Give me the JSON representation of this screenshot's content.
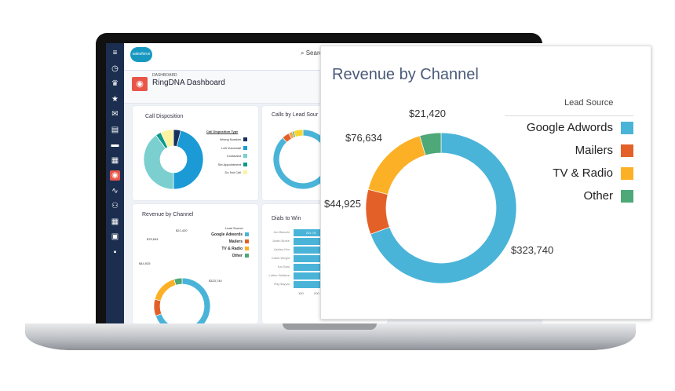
{
  "app": {
    "search_placeholder": "Search Sale",
    "breadcrumb": "DASHBOARD",
    "title": "RingDNA Dashboard",
    "logo_text": "salesforce"
  },
  "sidebar": {
    "icons": [
      "menu-icon",
      "clock-icon",
      "crown-icon",
      "star-icon",
      "inbox-icon",
      "document-icon",
      "folder-icon",
      "calendar-icon",
      "ringdna-icon",
      "pulse-icon",
      "people-icon",
      "calendar-icon",
      "clipboard-icon",
      "briefcase-icon"
    ]
  },
  "cards": {
    "call_disposition": {
      "title": "Call Disposition",
      "legend_title": "Call Disposition Type"
    },
    "calls_by_lead": {
      "title": "Calls by Lead Sour"
    },
    "revenue_small": {
      "title": "Revenue by Channel",
      "legend_title": "Lead Source"
    },
    "dials": {
      "title": "Dials to Win",
      "names": [
        "Jen Bianchi",
        "Justin Burke",
        "Ashley Kim",
        "Caleb Wright",
        "Kai Sato",
        "Luther Wallace",
        "Raj Nayyar"
      ],
      "first_value": "221.75",
      "ticks": [
        "100",
        "200"
      ]
    }
  },
  "chart_data": [
    {
      "type": "pie",
      "donut": true,
      "title": "Revenue by Channel",
      "legend_title": "Lead Source",
      "legend_position": "right",
      "categories": [
        "Google Adwords",
        "Mailers",
        "TV & Radio",
        "Other"
      ],
      "values": [
        323740,
        44925,
        76634,
        21420
      ],
      "labels": [
        "$323,740",
        "$44,925",
        "$76,634",
        "$21,420"
      ],
      "colors": [
        "#4ab4d8",
        "#e36128",
        "#fcb026",
        "#4ea878"
      ]
    },
    {
      "type": "pie",
      "donut": true,
      "title": "Call Disposition",
      "legend_title": "Call Disposition Type",
      "legend_position": "right",
      "categories": [
        "Wrong Number",
        "Left Voicemail",
        "Contacted",
        "Set Appointment",
        "Do Not Call"
      ],
      "values": [
        4,
        46,
        40,
        3,
        7
      ],
      "colors": [
        "#16325c",
        "#1b9ad6",
        "#7ccfcf",
        "#0f9a8c",
        "#fdf3a0"
      ]
    },
    {
      "type": "pie",
      "donut": true,
      "title": "Calls by Lead Sour",
      "values": [
        88,
        4,
        2,
        1,
        5
      ],
      "colors": [
        "#4ab4d8",
        "#e36128",
        "#f3a250",
        "#4ea878",
        "#f6d52c"
      ]
    }
  ]
}
